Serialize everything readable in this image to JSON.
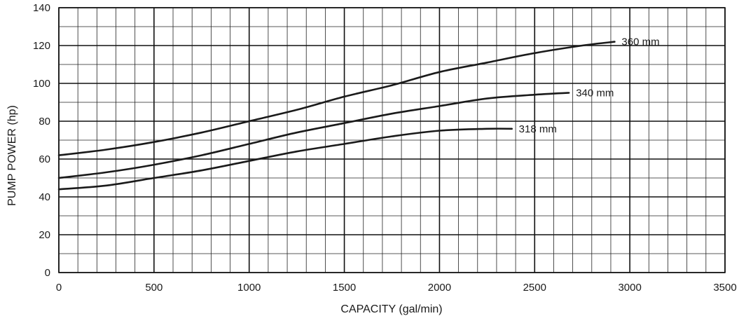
{
  "chart_data": {
    "type": "line",
    "xlabel": "CAPACITY (gal/min)",
    "ylabel": "PUMP POWER (hp)",
    "xlim": [
      0,
      3500
    ],
    "ylim": [
      0,
      140
    ],
    "x_ticks": [
      0,
      500,
      1000,
      1500,
      2000,
      2500,
      3000,
      3500
    ],
    "y_ticks": [
      0,
      20,
      40,
      60,
      80,
      100,
      120,
      140
    ],
    "x_minor_step": 100,
    "y_minor_step": 10,
    "grid": true,
    "series": [
      {
        "name": "360 mm",
        "x": [
          0,
          250,
          500,
          750,
          1000,
          1250,
          1500,
          1750,
          2000,
          2250,
          2500,
          2750,
          2920
        ],
        "y": [
          62,
          65,
          69,
          74,
          80,
          86,
          93,
          99,
          106,
          111,
          116,
          120,
          122
        ]
      },
      {
        "name": "340 mm",
        "x": [
          0,
          250,
          500,
          750,
          1000,
          1250,
          1500,
          1750,
          2000,
          2250,
          2500,
          2680
        ],
        "y": [
          50,
          53,
          57,
          62,
          68,
          74,
          79,
          84,
          88,
          92,
          94,
          95
        ]
      },
      {
        "name": "318 mm",
        "x": [
          0,
          250,
          500,
          750,
          1000,
          1250,
          1500,
          1750,
          2000,
          2250,
          2380
        ],
        "y": [
          44,
          46,
          50,
          54,
          59,
          64,
          68,
          72,
          75,
          76,
          76
        ]
      }
    ]
  }
}
